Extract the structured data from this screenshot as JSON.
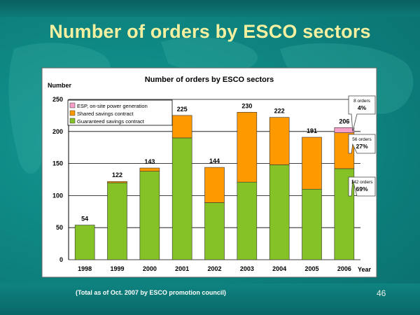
{
  "slide": {
    "title": "Number of orders by ESCO sectors",
    "footnote": "(Total as of Oct. 2007 by ESCO promotion council)",
    "page_number": "46"
  },
  "chart_data": {
    "type": "bar",
    "stacked": true,
    "title": "Number of orders by ESCO sectors",
    "xlabel": "Year",
    "ylabel": "Number",
    "ylim": [
      0,
      250
    ],
    "yticks": [
      0,
      50,
      100,
      150,
      200,
      250
    ],
    "grid": true,
    "legend_position": "top-left",
    "categories": [
      "1998",
      "1999",
      "2000",
      "2001",
      "2002",
      "2003",
      "2004",
      "2005",
      "2006"
    ],
    "series": [
      {
        "name": "Guaranteed savings contract",
        "color": "#84c225",
        "values": [
          54,
          120,
          138,
          190,
          89,
          121,
          148,
          110,
          142
        ]
      },
      {
        "name": "Shared savings contract",
        "color": "#ff9900",
        "values": [
          0,
          2,
          5,
          35,
          55,
          109,
          74,
          81,
          56
        ]
      },
      {
        "name": "ESP, on-site power generation",
        "color": "#f7a0c8",
        "values": [
          0,
          0,
          0,
          0,
          0,
          0,
          0,
          0,
          8
        ]
      }
    ],
    "totals": [
      "54",
      "122",
      "143",
      "225",
      "144",
      "230",
      "222",
      "191",
      "206"
    ],
    "legend_labels": [
      {
        "text": "ESP, on-site power generation",
        "color": "#f7a0c8"
      },
      {
        "text": "Shared savings contract",
        "color": "#ff9900"
      },
      {
        "text": "Guaranteed savings contract",
        "color": "#84c225"
      }
    ],
    "callouts": [
      {
        "orders": "8 orders",
        "percent": "4%"
      },
      {
        "orders": "56 orders",
        "percent": "27%"
      },
      {
        "orders": "142 orders",
        "percent": "69%"
      }
    ]
  }
}
